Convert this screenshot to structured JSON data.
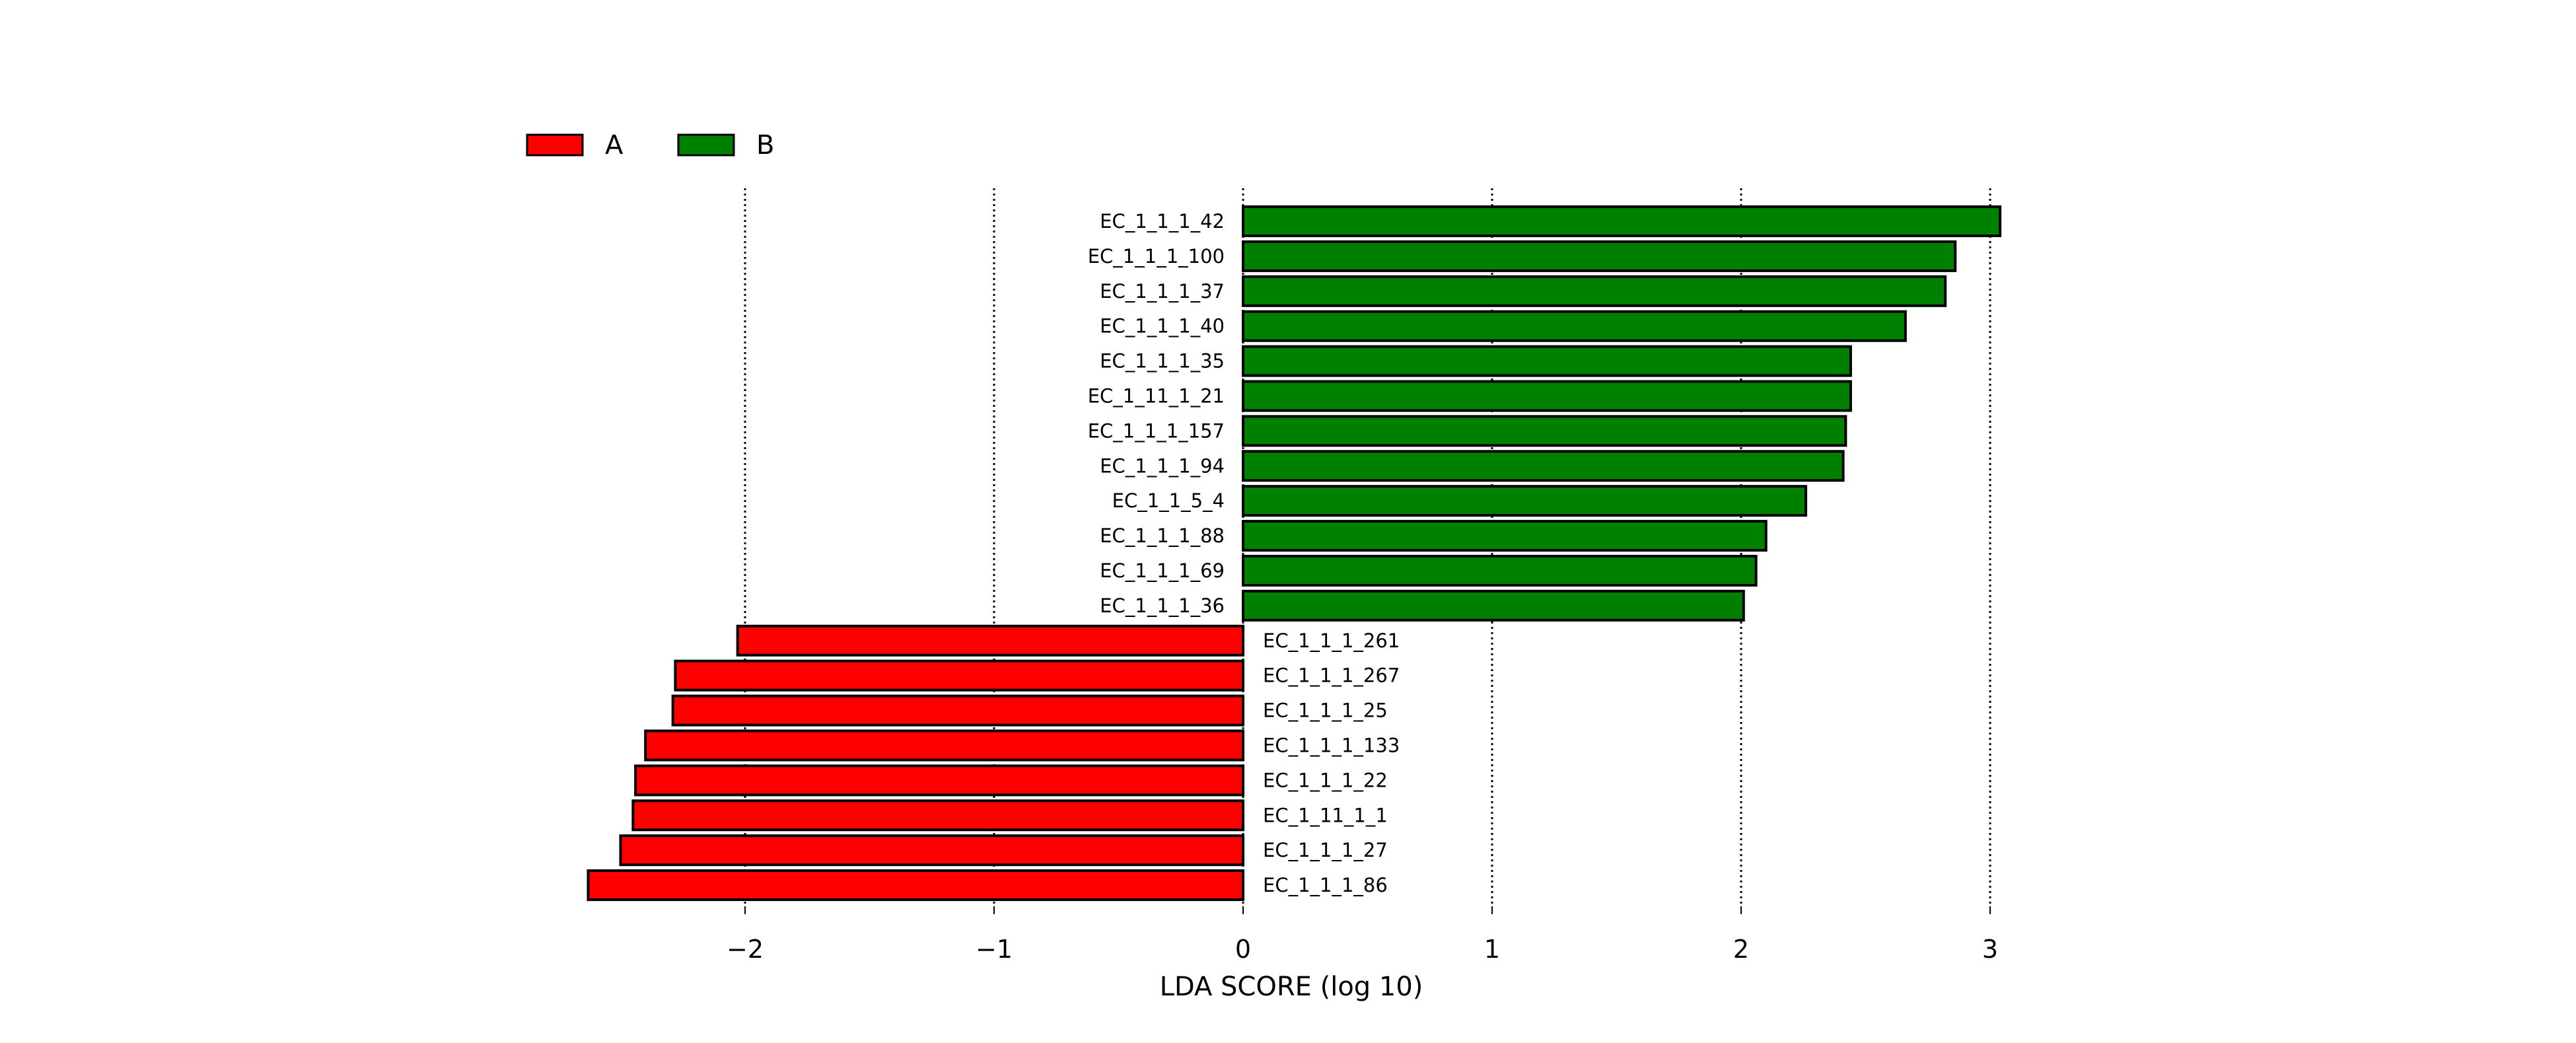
{
  "chart_data": {
    "type": "bar",
    "orientation": "horizontal",
    "xlabel": "LDA SCORE (log 10)",
    "ylabel": "",
    "title": "",
    "xlim": [
      -2.67,
      3.07
    ],
    "xticks": [
      -2,
      -1,
      0,
      1,
      2,
      3
    ],
    "xtick_labels": [
      "−2",
      "−1",
      "0",
      "1",
      "2",
      "3"
    ],
    "grid": "vertical dotted lines at ticks",
    "legend_placement": "top-left, horizontal",
    "legend": [
      {
        "name": "A",
        "color": "#FF0000"
      },
      {
        "name": "B",
        "color": "#008000"
      }
    ],
    "bars": [
      {
        "label": "EC_1_1_1_42",
        "value": 3.04,
        "group": "B"
      },
      {
        "label": "EC_1_1_1_100",
        "value": 2.86,
        "group": "B"
      },
      {
        "label": "EC_1_1_1_37",
        "value": 2.82,
        "group": "B"
      },
      {
        "label": "EC_1_1_1_40",
        "value": 2.66,
        "group": "B"
      },
      {
        "label": "EC_1_1_1_35",
        "value": 2.44,
        "group": "B"
      },
      {
        "label": "EC_1_11_1_21",
        "value": 2.44,
        "group": "B"
      },
      {
        "label": "EC_1_1_1_157",
        "value": 2.42,
        "group": "B"
      },
      {
        "label": "EC_1_1_1_94",
        "value": 2.41,
        "group": "B"
      },
      {
        "label": "EC_1_1_5_4",
        "value": 2.26,
        "group": "B"
      },
      {
        "label": "EC_1_1_1_88",
        "value": 2.1,
        "group": "B"
      },
      {
        "label": "EC_1_1_1_69",
        "value": 2.06,
        "group": "B"
      },
      {
        "label": "EC_1_1_1_36",
        "value": 2.01,
        "group": "B"
      },
      {
        "label": "EC_1_1_1_261",
        "value": -2.03,
        "group": "A"
      },
      {
        "label": "EC_1_1_1_267",
        "value": -2.28,
        "group": "A"
      },
      {
        "label": "EC_1_1_1_25",
        "value": -2.29,
        "group": "A"
      },
      {
        "label": "EC_1_1_1_133",
        "value": -2.4,
        "group": "A"
      },
      {
        "label": "EC_1_1_1_22",
        "value": -2.44,
        "group": "A"
      },
      {
        "label": "EC_1_11_1_1",
        "value": -2.45,
        "group": "A"
      },
      {
        "label": "EC_1_1_1_27",
        "value": -2.5,
        "group": "A"
      },
      {
        "label": "EC_1_1_1_86",
        "value": -2.63,
        "group": "A"
      }
    ]
  }
}
